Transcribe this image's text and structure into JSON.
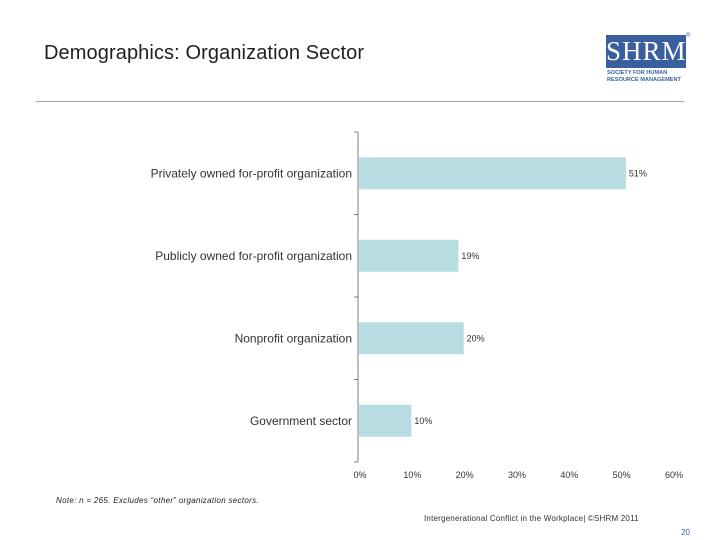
{
  "slide": {
    "title": "Demographics: Organization Sector",
    "note": "Note: n = 265. Excludes “other” organization sectors.",
    "footer": "Intergenerational Conflict in the Workplace| ©SHRM 2011",
    "page_number": "20"
  },
  "logo": {
    "main": "SHRM",
    "reg": "®",
    "line1": "SOCIETY FOR HUMAN",
    "line2": "RESOURCE MANAGEMENT",
    "color": "#3a5f9e"
  },
  "chart_data": {
    "type": "bar",
    "orientation": "horizontal",
    "categories": [
      "Privately owned for-profit organization",
      "Publicly owned for-profit organization",
      "Nonprofit organization",
      "Government sector"
    ],
    "values": [
      51,
      19,
      20,
      10
    ],
    "value_labels": [
      "51%",
      "19%",
      "20%",
      "10%"
    ],
    "xlim": [
      0,
      60
    ],
    "xticks": [
      "0%",
      "10%",
      "20%",
      "30%",
      "40%",
      "50%",
      "60%"
    ],
    "bar_color": "#b7dde2",
    "grid": false
  }
}
